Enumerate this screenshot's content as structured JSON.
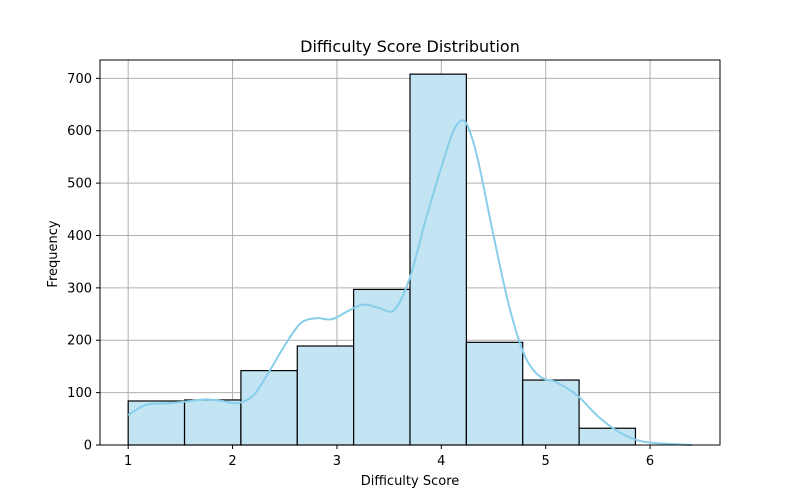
{
  "chart_data": {
    "type": "bar",
    "subtype": "histogram",
    "title": "Difficulty Score Distribution",
    "xlabel": "Difficulty Score",
    "ylabel": "Frequency",
    "xlim": [
      0.73,
      6.67
    ],
    "ylim": [
      0,
      735
    ],
    "xticks": [
      1,
      2,
      3,
      4,
      5,
      6
    ],
    "yticks": [
      0,
      100,
      200,
      300,
      400,
      500,
      600,
      700
    ],
    "grid": true,
    "bar_color": "#c2e4f3",
    "bar_edge_color": "#000000",
    "line_color": "#87ceeb",
    "bins": [
      {
        "x0": 1.0,
        "x1": 1.54,
        "value": 84
      },
      {
        "x0": 1.54,
        "x1": 2.08,
        "value": 86
      },
      {
        "x0": 2.08,
        "x1": 2.62,
        "value": 142
      },
      {
        "x0": 2.62,
        "x1": 3.16,
        "value": 189
      },
      {
        "x0": 3.16,
        "x1": 3.7,
        "value": 297
      },
      {
        "x0": 3.7,
        "x1": 4.24,
        "value": 708
      },
      {
        "x0": 4.24,
        "x1": 4.78,
        "value": 196
      },
      {
        "x0": 4.78,
        "x1": 5.32,
        "value": 124
      },
      {
        "x0": 5.32,
        "x1": 5.86,
        "value": 32
      }
    ],
    "kde": [
      {
        "x": 1.0,
        "y": 57
      },
      {
        "x": 1.1,
        "y": 70
      },
      {
        "x": 1.2,
        "y": 78
      },
      {
        "x": 1.4,
        "y": 80
      },
      {
        "x": 1.6,
        "y": 84
      },
      {
        "x": 1.75,
        "y": 87
      },
      {
        "x": 1.9,
        "y": 84
      },
      {
        "x": 2.05,
        "y": 80
      },
      {
        "x": 2.2,
        "y": 95
      },
      {
        "x": 2.35,
        "y": 140
      },
      {
        "x": 2.5,
        "y": 190
      },
      {
        "x": 2.65,
        "y": 232
      },
      {
        "x": 2.8,
        "y": 242
      },
      {
        "x": 2.95,
        "y": 240
      },
      {
        "x": 3.1,
        "y": 255
      },
      {
        "x": 3.25,
        "y": 268
      },
      {
        "x": 3.4,
        "y": 262
      },
      {
        "x": 3.55,
        "y": 258
      },
      {
        "x": 3.7,
        "y": 320
      },
      {
        "x": 3.85,
        "y": 430
      },
      {
        "x": 4.0,
        "y": 530
      },
      {
        "x": 4.1,
        "y": 592
      },
      {
        "x": 4.18,
        "y": 618
      },
      {
        "x": 4.25,
        "y": 610
      },
      {
        "x": 4.35,
        "y": 545
      },
      {
        "x": 4.5,
        "y": 400
      },
      {
        "x": 4.65,
        "y": 265
      },
      {
        "x": 4.8,
        "y": 170
      },
      {
        "x": 4.95,
        "y": 130
      },
      {
        "x": 5.1,
        "y": 120
      },
      {
        "x": 5.3,
        "y": 95
      },
      {
        "x": 5.5,
        "y": 55
      },
      {
        "x": 5.7,
        "y": 25
      },
      {
        "x": 5.9,
        "y": 8
      },
      {
        "x": 6.1,
        "y": 3
      },
      {
        "x": 6.4,
        "y": 0
      }
    ]
  }
}
